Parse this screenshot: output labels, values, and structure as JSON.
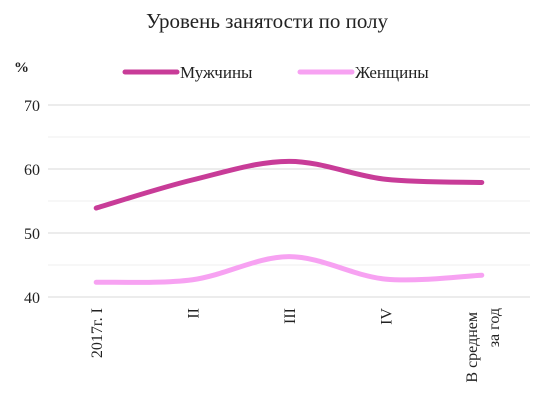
{
  "chart_data": {
    "type": "line",
    "title": "Уровень занятости по полу",
    "y_label": "%",
    "categories": [
      "2017г. I",
      "II",
      "III",
      "IV",
      "В среднем за год"
    ],
    "series": [
      {
        "name": "Мужчины",
        "color": "#c83c98",
        "values": [
          53.9,
          58.3,
          61.2,
          58.4,
          57.9
        ]
      },
      {
        "name": "Женщины",
        "color": "#f7a2f2",
        "values": [
          42.3,
          42.7,
          46.3,
          42.8,
          43.4
        ]
      }
    ],
    "ylim": [
      40,
      70
    ],
    "yticks": [
      40,
      50,
      60,
      70
    ],
    "grid": true,
    "minor_grid": true,
    "smooth": true,
    "legend": "top"
  }
}
